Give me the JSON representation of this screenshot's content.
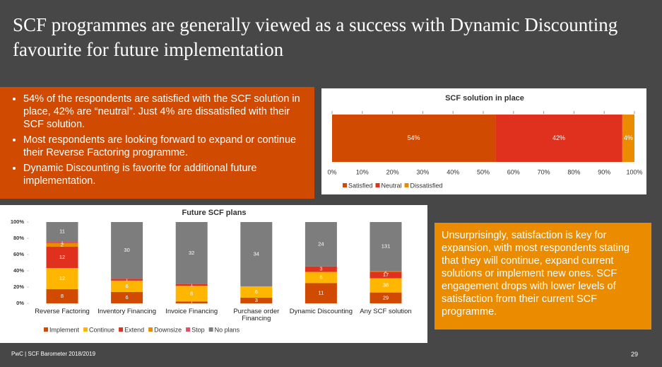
{
  "title": "SCF programmes are generally viewed as a success with Dynamic Discounting favourite for future implementation",
  "bullets": [
    "54% of the respondents are satisfied with the SCF solution in place, 42% are “neutral”. Just 4% are dissatisfied with their SCF solution.",
    "Most respondents are looking forward to expand or continue their Reverse Factoring programme.",
    "Dynamic Discounting is favorite for additional future implementation."
  ],
  "callout": "Unsurprisingly, satisfaction is key for expansion, with most respondents stating that they will continue, expand current solutions or implement new ones. SCF engagement drops with lower levels of satisfaction from their current SCF programme.",
  "footer": "PwC | SCF Barometer 2018/2019",
  "page_number": "29",
  "chart_data": [
    {
      "type": "stacked_barh",
      "title": "SCF solution in place",
      "categories": [
        null
      ],
      "series": [
        {
          "name": "Satisfied",
          "color": "#d04a02",
          "values": [
            54
          ],
          "value_labels": [
            "54%"
          ]
        },
        {
          "name": "Neutral",
          "color": "#e0301e",
          "values": [
            42
          ],
          "value_labels": [
            "42%"
          ]
        },
        {
          "name": "Dissatisfied",
          "color": "#eb8c00",
          "values": [
            4
          ],
          "value_labels": [
            "4%"
          ]
        }
      ],
      "xlim": [
        0,
        100
      ],
      "xticks": [
        {
          "value": 0,
          "label": "0%"
        },
        {
          "value": 10,
          "label": "10%"
        },
        {
          "value": 20,
          "label": "20%"
        },
        {
          "value": 30,
          "label": "30%"
        },
        {
          "value": 40,
          "label": "40%"
        },
        {
          "value": 50,
          "label": "50%"
        },
        {
          "value": 60,
          "label": "60%"
        },
        {
          "value": 70,
          "label": "70%"
        },
        {
          "value": 80,
          "label": "80%"
        },
        {
          "value": 90,
          "label": "90%"
        },
        {
          "value": 100,
          "label": "100%"
        }
      ],
      "legend": "bottom-left"
    },
    {
      "type": "stacked_percent_bar",
      "title": "Future SCF plans",
      "categories": [
        "Reverse Factoring",
        "Inventory Financing",
        "Invoice Financing",
        "Purchase order Financing",
        "Dynamic Discounting",
        "Any SCF solution"
      ],
      "series": [
        {
          "name": "Implement",
          "color": "#d04a02",
          "values": [
            8,
            6,
            1,
            3,
            11,
            29
          ]
        },
        {
          "name": "Continue",
          "color": "#ffb600",
          "values": [
            12,
            6,
            8,
            6,
            6,
            38
          ]
        },
        {
          "name": "Extend",
          "color": "#e0301e",
          "values": [
            12,
            1,
            1,
            null,
            3,
            17
          ]
        },
        {
          "name": "Downsize",
          "color": "#eb8c00",
          "values": [
            2,
            null,
            null,
            null,
            null,
            2
          ]
        },
        {
          "name": "Stop",
          "color": "#db536a",
          "values": [
            1,
            null,
            null,
            null,
            null,
            null
          ]
        },
        {
          "name": "No plans",
          "color": "#7d7d7d",
          "values": [
            11,
            30,
            32,
            34,
            24,
            131
          ]
        }
      ],
      "ylim": [
        0,
        100
      ],
      "yticks": [
        {
          "value": 0,
          "label": "0%"
        },
        {
          "value": 20,
          "label": "20%"
        },
        {
          "value": 40,
          "label": "40%"
        },
        {
          "value": 60,
          "label": "60%"
        },
        {
          "value": 80,
          "label": "80%"
        },
        {
          "value": 100,
          "label": "100%"
        }
      ],
      "legend": "bottom-left"
    }
  ]
}
